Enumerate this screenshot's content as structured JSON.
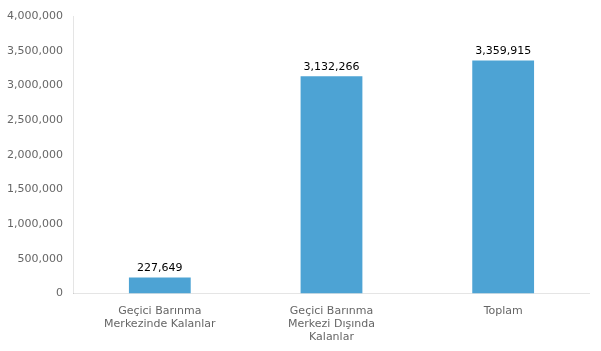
{
  "chart_data": {
    "type": "bar",
    "categories": [
      "Geçici Barınma\nMerkezinde Kalanlar",
      "Geçici Barınma\nMerkezi Dışında\nKalanlar",
      "Toplam"
    ],
    "values": [
      227649,
      3132266,
      3359915
    ],
    "value_labels": [
      "227,649",
      "3,132,266",
      "3,359,915"
    ],
    "data_labels": true,
    "color": "#4da3d4",
    "ylim": [
      0,
      4000000
    ],
    "yticks": [
      0,
      {
        "value": 500000,
        "label": "500,000"
      },
      {
        "value": 1000000,
        "label": "1,000,000"
      },
      {
        "value": 1500000,
        "label": "1,500,000"
      },
      {
        "value": 2000000,
        "label": "2,000,000"
      },
      {
        "value": 2500000,
        "label": "2,500,000"
      },
      {
        "value": 3000000,
        "label": "3,000,000"
      },
      {
        "value": 3500000,
        "label": "3,500,000"
      },
      {
        "value": 4000000,
        "label": "4,000,000"
      }
    ],
    "grid": false
  }
}
